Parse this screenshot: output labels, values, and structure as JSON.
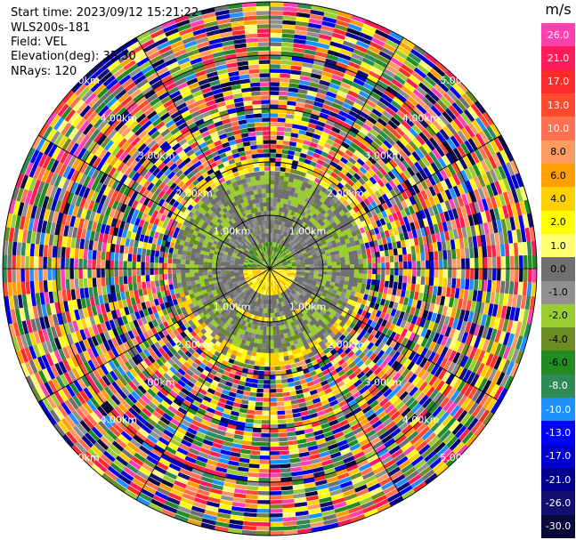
{
  "header": {
    "start_time": "Start time: 2023/09/12 15:21:22",
    "instrument": "WLS200s-181",
    "field": "Field: VEL",
    "elevation": "Elevation(deg): 35.30",
    "nrays": "NRays: 120"
  },
  "colorbar": {
    "unit": "m/s",
    "labels": [
      "26.0",
      "21.0",
      "17.0",
      "13.0",
      "10.0",
      "8.0",
      "6.0",
      "4.0",
      "2.0",
      "1.0",
      "0.0",
      "-1.0",
      "-2.0",
      "-4.0",
      "-6.0",
      "-8.0",
      "-10.0",
      "-13.0",
      "-17.0",
      "-21.0",
      "-26.0",
      "-30.0"
    ],
    "colors": [
      "#ff40b0",
      "#ff1a5a",
      "#ff2a2a",
      "#ff4a30",
      "#ff7050",
      "#ff9a60",
      "#ffa000",
      "#ffd000",
      "#ffff00",
      "#ffff70",
      "#707070",
      "#909090",
      "#9acd32",
      "#6b8e23",
      "#228b22",
      "#2e8b57",
      "#1e90ff",
      "#0000ff",
      "#0000cd",
      "#00008b",
      "#101070",
      "#08083a"
    ]
  },
  "range_labels": [
    "1.00km",
    "2.00km",
    "3.00km",
    "4.00km",
    "5.00km"
  ],
  "chart_data": {
    "type": "heatmap",
    "projection": "polar PPI",
    "field": "VEL",
    "units": "m/s",
    "nrays": 120,
    "elevation_deg": 35.3,
    "range_rings_km": [
      1,
      2,
      3,
      4,
      5
    ],
    "max_range_km": 5,
    "value_range": [
      -30,
      26
    ],
    "radial_regions": [
      {
        "from_km": 0.0,
        "to_km": 0.5,
        "north_half": "-2.0 to 0.0 (green/grey)",
        "south_half": "2.0 to 6.0 (yellow)"
      },
      {
        "from_km": 0.5,
        "to_km": 1.0,
        "dominant": "0.0 to -1.0 (grey)"
      },
      {
        "from_km": 1.0,
        "to_km": 1.8,
        "dominant": "0.0 to -2.0 (grey/light green)",
        "south_edge": "2.0 to 4.0 (yellow)"
      },
      {
        "from_km": 1.8,
        "to_km": 5.0,
        "dominant": "noise across full scale"
      }
    ]
  }
}
